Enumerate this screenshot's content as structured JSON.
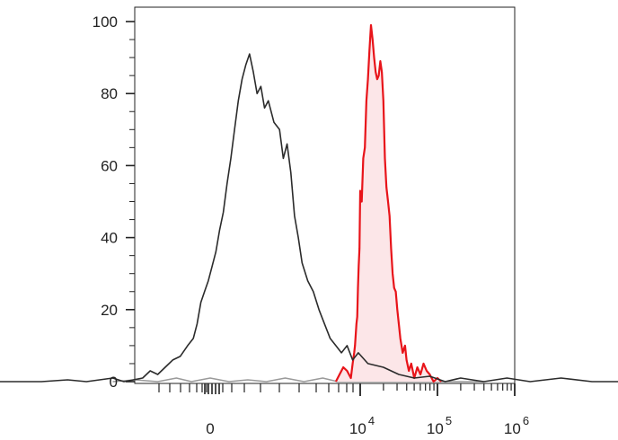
{
  "chart_data": {
    "type": "line",
    "title": "",
    "xlabel": "",
    "ylabel": "",
    "ylim": [
      0,
      100
    ],
    "yticks": [
      0,
      20,
      40,
      60,
      80,
      100
    ],
    "ytick_labels": [
      "0",
      "20",
      "40",
      "60",
      "80",
      "100"
    ],
    "xscale": "biexponential",
    "xticks": [
      {
        "base": "0",
        "exp": ""
      },
      {
        "base": "10",
        "exp": "4"
      },
      {
        "base": "10",
        "exp": "5"
      },
      {
        "base": "10",
        "exp": "6"
      }
    ],
    "grid": false,
    "legend": "none",
    "series": [
      {
        "color": "#2b2b2b",
        "fill": "none",
        "points": [
          [
            -6.2,
            0
          ],
          [
            -4.5,
            0
          ],
          [
            -3.8,
            0.5
          ],
          [
            -3.3,
            0
          ],
          [
            -2.6,
            1
          ],
          [
            -2.3,
            0
          ],
          [
            -1.8,
            1
          ],
          [
            -1.6,
            3
          ],
          [
            -1.4,
            2
          ],
          [
            -1.2,
            4
          ],
          [
            -1.0,
            6
          ],
          [
            -0.8,
            7
          ],
          [
            -0.6,
            10
          ],
          [
            -0.45,
            12
          ],
          [
            -0.35,
            16
          ],
          [
            -0.25,
            22
          ],
          [
            -0.15,
            25
          ],
          [
            -0.05,
            28
          ],
          [
            0.05,
            32
          ],
          [
            0.15,
            36
          ],
          [
            0.25,
            42
          ],
          [
            0.35,
            47
          ],
          [
            0.45,
            55
          ],
          [
            0.55,
            62
          ],
          [
            0.65,
            70
          ],
          [
            0.75,
            78
          ],
          [
            0.85,
            84
          ],
          [
            0.95,
            88
          ],
          [
            1.05,
            91
          ],
          [
            1.15,
            86
          ],
          [
            1.25,
            80
          ],
          [
            1.35,
            82
          ],
          [
            1.45,
            76
          ],
          [
            1.55,
            78
          ],
          [
            1.7,
            72
          ],
          [
            1.85,
            70
          ],
          [
            1.95,
            62
          ],
          [
            2.05,
            66
          ],
          [
            2.15,
            58
          ],
          [
            2.25,
            46
          ],
          [
            2.35,
            40
          ],
          [
            2.45,
            33
          ],
          [
            2.6,
            28
          ],
          [
            2.75,
            25
          ],
          [
            2.9,
            20
          ],
          [
            3.05,
            16
          ],
          [
            3.2,
            12
          ],
          [
            3.35,
            10
          ],
          [
            3.5,
            8
          ],
          [
            3.65,
            10
          ],
          [
            3.8,
            6
          ],
          [
            3.95,
            8
          ],
          [
            4.1,
            5
          ],
          [
            4.3,
            4
          ],
          [
            4.5,
            2
          ],
          [
            4.7,
            1
          ],
          [
            4.9,
            1.5
          ],
          [
            5.1,
            0
          ],
          [
            5.3,
            1
          ],
          [
            5.6,
            0
          ],
          [
            5.9,
            1
          ],
          [
            6.2,
            0
          ],
          [
            6.6,
            1
          ],
          [
            7.0,
            0
          ],
          [
            7.5,
            0
          ]
        ]
      },
      {
        "color": "#e8141a",
        "fill": "#fce6e8",
        "points": [
          [
            3.35,
            0
          ],
          [
            3.45,
            2
          ],
          [
            3.55,
            4
          ],
          [
            3.65,
            3
          ],
          [
            3.75,
            1
          ],
          [
            3.8,
            5
          ],
          [
            3.84,
            8
          ],
          [
            3.86,
            10
          ],
          [
            3.88,
            13
          ],
          [
            3.9,
            16
          ],
          [
            3.92,
            18
          ],
          [
            3.94,
            26
          ],
          [
            3.96,
            32
          ],
          [
            3.98,
            37
          ],
          [
            4.0,
            53
          ],
          [
            4.02,
            50
          ],
          [
            4.04,
            62
          ],
          [
            4.06,
            65
          ],
          [
            4.08,
            78
          ],
          [
            4.1,
            84
          ],
          [
            4.12,
            92
          ],
          [
            4.14,
            99
          ],
          [
            4.16,
            95
          ],
          [
            4.18,
            90
          ],
          [
            4.2,
            86
          ],
          [
            4.22,
            84
          ],
          [
            4.24,
            85
          ],
          [
            4.26,
            89
          ],
          [
            4.28,
            86
          ],
          [
            4.3,
            78
          ],
          [
            4.32,
            62
          ],
          [
            4.34,
            54
          ],
          [
            4.36,
            50
          ],
          [
            4.38,
            46
          ],
          [
            4.4,
            37
          ],
          [
            4.42,
            30
          ],
          [
            4.44,
            26
          ],
          [
            4.46,
            25
          ],
          [
            4.48,
            20
          ],
          [
            4.5,
            16
          ],
          [
            4.52,
            12
          ],
          [
            4.55,
            8
          ],
          [
            4.58,
            10
          ],
          [
            4.6,
            6
          ],
          [
            4.63,
            3
          ],
          [
            4.66,
            5
          ],
          [
            4.7,
            1
          ],
          [
            4.74,
            4
          ],
          [
            4.78,
            2
          ],
          [
            4.82,
            5
          ],
          [
            4.86,
            3
          ],
          [
            4.9,
            2
          ],
          [
            4.95,
            0
          ],
          [
            5.0,
            1
          ],
          [
            5.05,
            0
          ]
        ]
      },
      {
        "color": "#9a9a9a",
        "fill": "none",
        "points": [
          [
            -2.6,
            0
          ],
          [
            -2.0,
            0.5
          ],
          [
            -1.4,
            0
          ],
          [
            -0.9,
            1
          ],
          [
            -0.5,
            0
          ],
          [
            0.0,
            1
          ],
          [
            0.5,
            0
          ],
          [
            1.0,
            0.5
          ],
          [
            1.5,
            0
          ],
          [
            2.0,
            1
          ],
          [
            2.5,
            0
          ],
          [
            3.0,
            1
          ],
          [
            3.4,
            0
          ],
          [
            4.0,
            0
          ],
          [
            5.0,
            0
          ],
          [
            5.6,
            0
          ]
        ]
      }
    ]
  }
}
